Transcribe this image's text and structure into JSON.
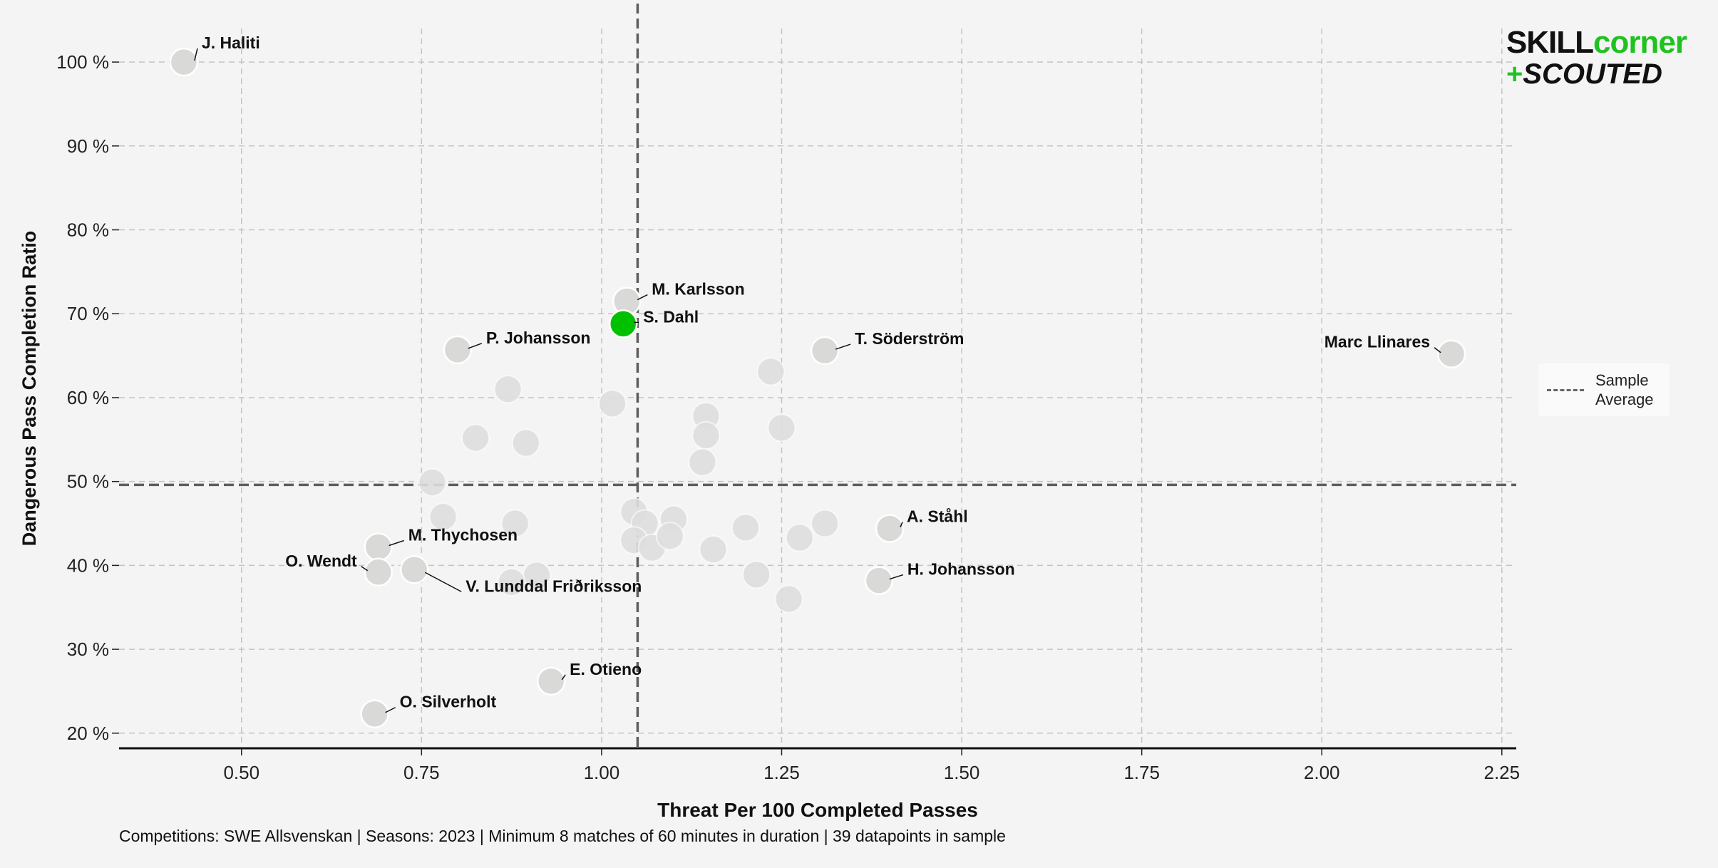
{
  "chart_data": {
    "type": "scatter",
    "xlabel": "Threat Per 100 Completed Passes",
    "ylabel": "Dangerous Pass Completion Ratio",
    "xlim": [
      0.33,
      2.27
    ],
    "ylim": [
      18.2,
      104
    ],
    "x_ticks": [
      0.5,
      0.75,
      1.0,
      1.25,
      1.5,
      1.75,
      2.0,
      2.25
    ],
    "x_tick_labels": [
      "0.50",
      "0.75",
      "1.00",
      "1.25",
      "1.50",
      "1.75",
      "2.00",
      "2.25"
    ],
    "y_ticks": [
      20,
      30,
      40,
      50,
      60,
      70,
      80,
      90,
      100
    ],
    "y_tick_labels": [
      "20 %",
      "30 %",
      "40 %",
      "50 %",
      "60 %",
      "70 %",
      "80 %",
      "90 %",
      "100 %"
    ],
    "grid": true,
    "sample_average": {
      "x": 1.05,
      "y": 49.6
    },
    "legend": {
      "label": "Sample Average",
      "placement": "right"
    },
    "highlight_color": "#00c000",
    "point_color": "#d9d9d7",
    "points": [
      {
        "name": "J. Haliti",
        "x": 0.42,
        "y": 100.0
      },
      {
        "name": "M. Karlsson",
        "x": 1.035,
        "y": 71.5
      },
      {
        "name": "S. Dahl",
        "x": 1.03,
        "y": 68.8,
        "highlight": true
      },
      {
        "name": "P. Johansson",
        "x": 0.8,
        "y": 65.7
      },
      {
        "name": "T. Söderström",
        "x": 1.31,
        "y": 65.6
      },
      {
        "name": "Marc Llinares",
        "x": 2.18,
        "y": 65.2
      },
      {
        "name": "A. Ståhl",
        "x": 1.4,
        "y": 44.4
      },
      {
        "name": "M. Thychosen",
        "x": 0.69,
        "y": 42.2
      },
      {
        "name": "O. Wendt",
        "x": 0.69,
        "y": 39.2
      },
      {
        "name": "V. Lunddal Friðriksson",
        "x": 0.74,
        "y": 39.5
      },
      {
        "name": "H. Johansson",
        "x": 1.385,
        "y": 38.2
      },
      {
        "name": "E. Otieno",
        "x": 0.93,
        "y": 26.2
      },
      {
        "name": "O. Silverholt",
        "x": 0.685,
        "y": 22.3
      },
      {
        "name": "",
        "x": 0.87,
        "y": 61.0
      },
      {
        "name": "",
        "x": 1.015,
        "y": 59.3
      },
      {
        "name": "",
        "x": 1.235,
        "y": 63.1
      },
      {
        "name": "",
        "x": 1.145,
        "y": 57.8
      },
      {
        "name": "",
        "x": 1.145,
        "y": 55.5
      },
      {
        "name": "",
        "x": 1.25,
        "y": 56.4
      },
      {
        "name": "",
        "x": 0.825,
        "y": 55.2
      },
      {
        "name": "",
        "x": 0.895,
        "y": 54.6
      },
      {
        "name": "",
        "x": 1.14,
        "y": 52.3
      },
      {
        "name": "",
        "x": 0.765,
        "y": 49.9
      },
      {
        "name": "",
        "x": 0.78,
        "y": 45.8
      },
      {
        "name": "",
        "x": 0.88,
        "y": 45.0
      },
      {
        "name": "",
        "x": 1.045,
        "y": 46.4
      },
      {
        "name": "",
        "x": 1.06,
        "y": 45.0
      },
      {
        "name": "",
        "x": 1.1,
        "y": 45.5
      },
      {
        "name": "",
        "x": 1.045,
        "y": 43.0
      },
      {
        "name": "",
        "x": 1.07,
        "y": 42.1
      },
      {
        "name": "",
        "x": 1.095,
        "y": 43.5
      },
      {
        "name": "",
        "x": 1.155,
        "y": 41.9
      },
      {
        "name": "",
        "x": 1.2,
        "y": 44.5
      },
      {
        "name": "",
        "x": 1.275,
        "y": 43.3
      },
      {
        "name": "",
        "x": 1.31,
        "y": 45.0
      },
      {
        "name": "",
        "x": 1.215,
        "y": 38.9
      },
      {
        "name": "",
        "x": 1.26,
        "y": 36.0
      },
      {
        "name": "",
        "x": 0.91,
        "y": 38.8
      },
      {
        "name": "",
        "x": 0.875,
        "y": 38.0
      }
    ]
  },
  "logo": {
    "skill": "SKILL",
    "corner": "corner",
    "plus": "+",
    "scouted": "SCOUTED"
  },
  "footer": "Competitions: SWE Allsvenskan | Seasons: 2023 | Minimum 8 matches of 60 minutes in duration | 39 datapoints in sample"
}
